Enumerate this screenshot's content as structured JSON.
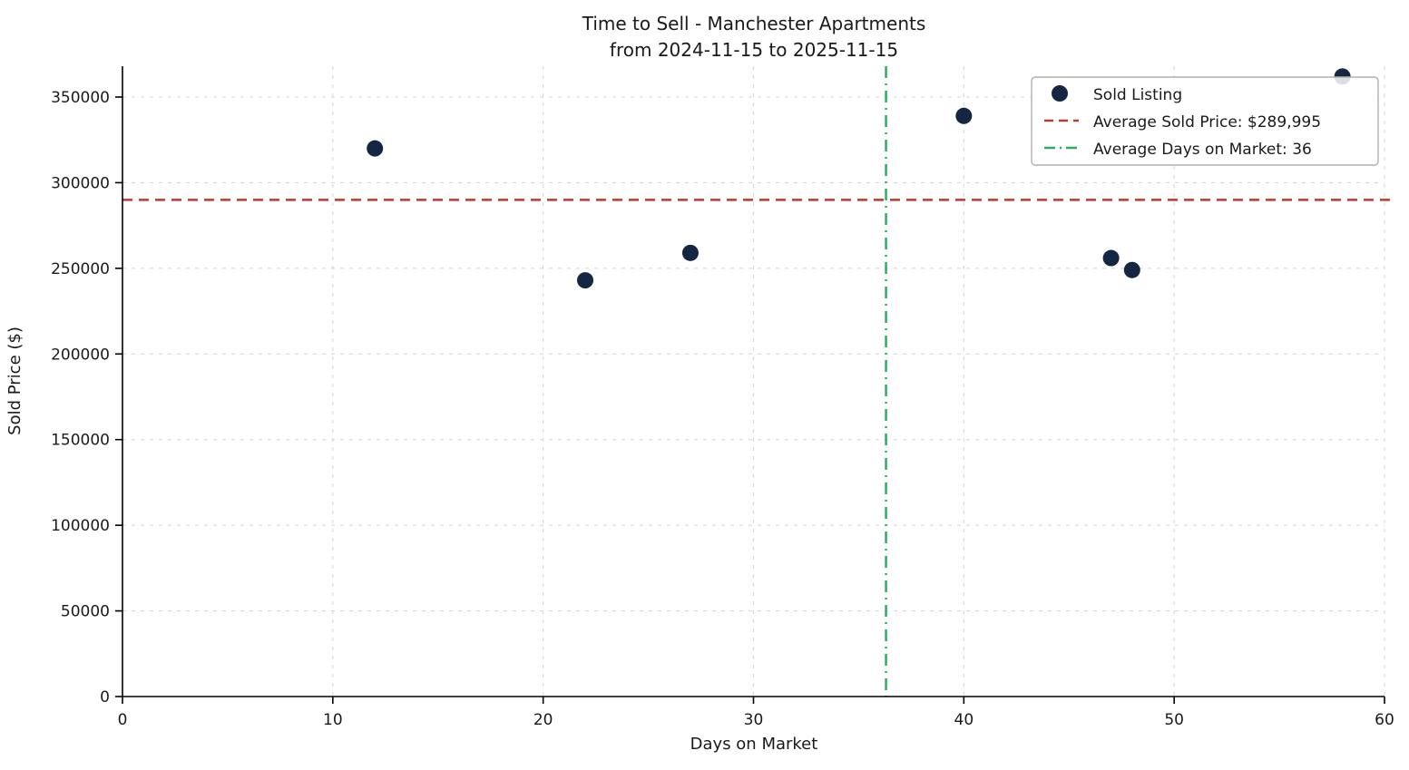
{
  "title": {
    "line1": "Time to Sell - Manchester Apartments",
    "line2": "from 2024-11-15 to 2025-11-15"
  },
  "axes": {
    "xlabel": "Days on Market",
    "ylabel": "Sold Price ($)"
  },
  "legend": {
    "sold_listing": "Sold Listing",
    "avg_price": "Average Sold Price: $289,995",
    "avg_days": "Average Days on Market: 36"
  },
  "chart_data": {
    "type": "scatter",
    "title": "Time to Sell - Manchester Apartments\nfrom 2024-11-15 to 2025-11-15",
    "xlabel": "Days on Market",
    "ylabel": "Sold Price ($)",
    "xlim": [
      0,
      60
    ],
    "ylim": [
      0,
      368000
    ],
    "x_ticks": [
      0,
      10,
      20,
      30,
      40,
      50,
      60
    ],
    "y_ticks": [
      0,
      50000,
      100000,
      150000,
      200000,
      250000,
      300000,
      350000
    ],
    "points": [
      {
        "days": 12,
        "price": 320000
      },
      {
        "days": 22,
        "price": 243000
      },
      {
        "days": 27,
        "price": 259000
      },
      {
        "days": 40,
        "price": 339000
      },
      {
        "days": 47,
        "price": 256000
      },
      {
        "days": 48,
        "price": 249000
      },
      {
        "days": 58,
        "price": 362000
      }
    ],
    "average_sold_price": 289995,
    "average_days_on_market": 36.3,
    "legend_position": "upper right",
    "grid": true,
    "colors": {
      "point": "#132742",
      "avg_price_line": "#c0392b",
      "avg_days_line": "#2eae60",
      "grid": "#d4d4d4",
      "spine": "#000000",
      "legend_border": "#b0b0b0"
    }
  }
}
